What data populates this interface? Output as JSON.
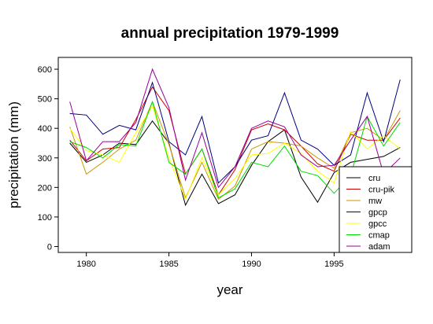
{
  "chart_data": {
    "type": "line",
    "title": "annual precipitation 1979-1999",
    "xlabel": "year",
    "ylabel": "precipitation (mm)",
    "xlim": [
      1978.3,
      1999.7
    ],
    "ylim": [
      -20,
      640
    ],
    "xticks": [
      1980,
      1985,
      1990,
      1995
    ],
    "yticks": [
      0,
      100,
      200,
      300,
      400,
      500,
      600
    ],
    "grid": false,
    "legend_position": "bottom-right",
    "x": [
      1979,
      1980,
      1981,
      1982,
      1983,
      1984,
      1985,
      1986,
      1987,
      1988,
      1989,
      1990,
      1991,
      1992,
      1993,
      1994,
      1995,
      1996,
      1997,
      1998,
      1999
    ],
    "series": [
      {
        "name": "cru",
        "color": "#000000",
        "values": [
          350,
          285,
          310,
          350,
          345,
          425,
          350,
          140,
          245,
          145,
          175,
          275,
          355,
          395,
          235,
          150,
          250,
          285,
          295,
          305,
          335
        ]
      },
      {
        "name": "cru-pik",
        "color": "#cc0000",
        "values": [
          360,
          290,
          330,
          335,
          430,
          540,
          460,
          245,
          330,
          175,
          260,
          395,
          415,
          395,
          340,
          280,
          255,
          380,
          360,
          360,
          435
        ]
      },
      {
        "name": "mw",
        "color": "#cc9900",
        "values": [
          405,
          245,
          285,
          330,
          360,
          490,
          345,
          165,
          285,
          160,
          205,
          330,
          355,
          350,
          340,
          300,
          265,
          385,
          400,
          360,
          460
        ]
      },
      {
        "name": "gpcp",
        "color": "#000080",
        "values": [
          450,
          445,
          380,
          410,
          395,
          555,
          355,
          310,
          440,
          215,
          270,
          360,
          375,
          520,
          360,
          330,
          275,
          310,
          520,
          355,
          565
        ]
      },
      {
        "name": "gpcc",
        "color": "#ffff00",
        "values": [
          400,
          325,
          310,
          285,
          385,
          475,
          300,
          160,
          300,
          175,
          230,
          310,
          315,
          350,
          315,
          255,
          215,
          390,
          330,
          375,
          330
        ]
      },
      {
        "name": "cmap",
        "color": "#00dd00",
        "values": [
          355,
          335,
          300,
          345,
          340,
          490,
          285,
          245,
          330,
          165,
          195,
          285,
          270,
          340,
          255,
          240,
          180,
          240,
          440,
          340,
          420
        ]
      },
      {
        "name": "adam",
        "color": "#990099",
        "values": [
          490,
          290,
          355,
          355,
          420,
          600,
          470,
          225,
          385,
          200,
          270,
          400,
          425,
          405,
          310,
          270,
          275,
          360,
          440,
          245,
          300
        ]
      }
    ]
  }
}
